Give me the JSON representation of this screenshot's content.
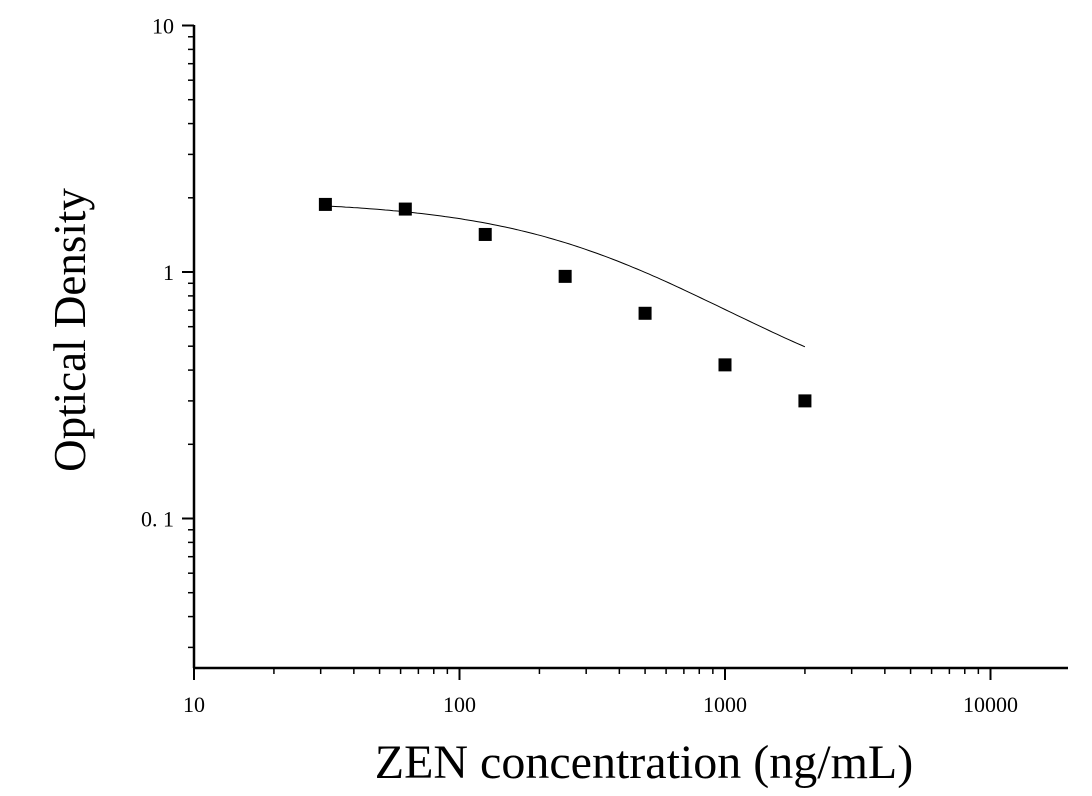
{
  "chart_data": {
    "type": "scatter",
    "title": "",
    "xlabel": "ZEN concentration (ng/mL)",
    "ylabel": "Optical Density",
    "x_scale": "log",
    "y_scale": "log",
    "xlim": [
      10,
      20000
    ],
    "ylim": [
      0.025,
      10
    ],
    "x_ticks": [
      {
        "value": 10,
        "label": "10"
      },
      {
        "value": 100,
        "label": "100"
      },
      {
        "value": 1000,
        "label": "1000"
      },
      {
        "value": 10000,
        "label": "10000"
      }
    ],
    "y_ticks": [
      {
        "value": 0.1,
        "label": "0. 1"
      },
      {
        "value": 1,
        "label": "1"
      },
      {
        "value": 10,
        "label": "10"
      }
    ],
    "grid": false,
    "series": [
      {
        "points": [
          {
            "x": 31.25,
            "y": 1.88
          },
          {
            "x": 62.5,
            "y": 1.8
          },
          {
            "x": 125,
            "y": 1.42
          },
          {
            "x": 250,
            "y": 0.96
          },
          {
            "x": 500,
            "y": 0.68
          },
          {
            "x": 1000,
            "y": 0.42
          },
          {
            "x": 2000,
            "y": 0.3
          }
        ],
        "marker": "square",
        "color": "#000000"
      }
    ],
    "fit_curve": {
      "model": "4PL",
      "top": 1.95,
      "bottom": 0.25,
      "ec50": 400,
      "hill": 1.1,
      "x_range": [
        31.25,
        2000
      ],
      "color": "#000000"
    }
  }
}
